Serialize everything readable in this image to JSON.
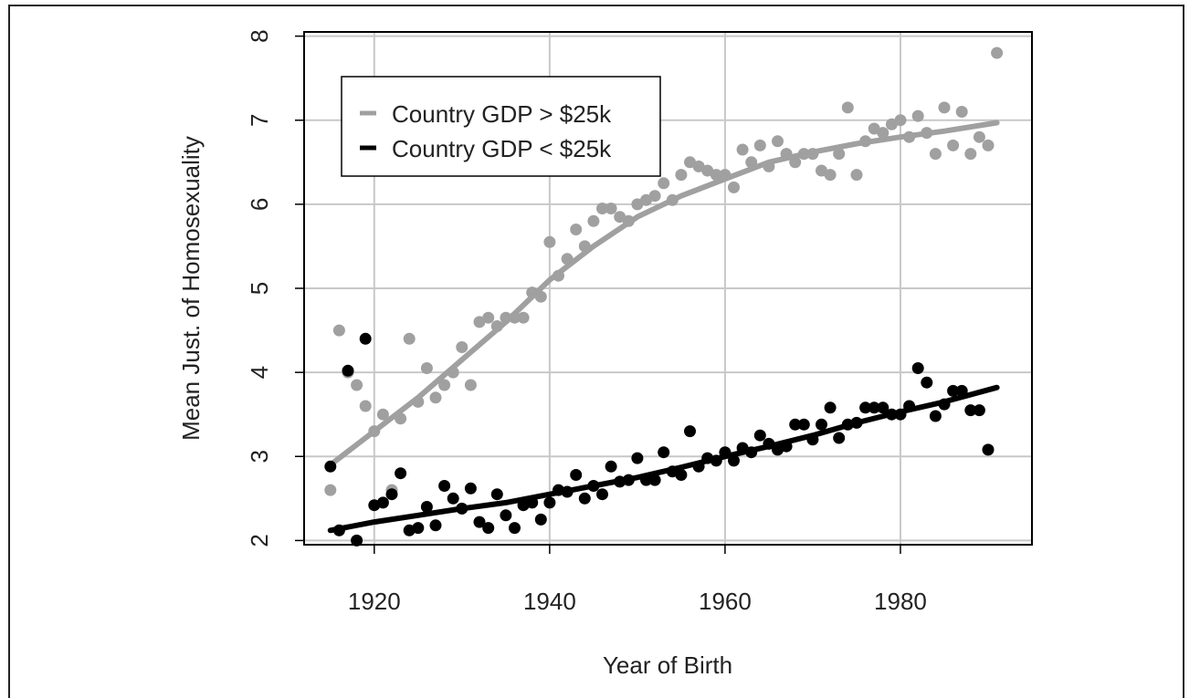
{
  "chart_data": {
    "type": "scatter",
    "title": "",
    "xlabel": "Year of Birth",
    "ylabel": "Mean Just. of Homosexuality",
    "xlim": [
      1912,
      1995
    ],
    "ylim": [
      1.95,
      8.05
    ],
    "x_ticks": [
      1920,
      1940,
      1960,
      1980
    ],
    "y_ticks": [
      2,
      3,
      4,
      5,
      6,
      7,
      8
    ],
    "grid": true,
    "legend_position": "top-left",
    "series": [
      {
        "name": "Country GDP > $25k",
        "color": "#a0a0a0",
        "trend": [
          [
            1915,
            2.9
          ],
          [
            1920,
            3.3
          ],
          [
            1925,
            3.7
          ],
          [
            1930,
            4.15
          ],
          [
            1935,
            4.6
          ],
          [
            1940,
            5.1
          ],
          [
            1945,
            5.5
          ],
          [
            1950,
            5.85
          ],
          [
            1955,
            6.1
          ],
          [
            1960,
            6.3
          ],
          [
            1965,
            6.5
          ],
          [
            1970,
            6.62
          ],
          [
            1975,
            6.72
          ],
          [
            1980,
            6.8
          ],
          [
            1985,
            6.87
          ],
          [
            1991,
            6.97
          ]
        ],
        "points": [
          [
            1915,
            2.6
          ],
          [
            1916,
            4.5
          ],
          [
            1917,
            4.0
          ],
          [
            1918,
            3.85
          ],
          [
            1919,
            3.6
          ],
          [
            1920,
            3.3
          ],
          [
            1921,
            3.5
          ],
          [
            1922,
            2.6
          ],
          [
            1923,
            3.45
          ],
          [
            1924,
            4.4
          ],
          [
            1925,
            3.65
          ],
          [
            1926,
            4.05
          ],
          [
            1927,
            3.7
          ],
          [
            1928,
            3.85
          ],
          [
            1929,
            4.0
          ],
          [
            1930,
            4.3
          ],
          [
            1931,
            3.85
          ],
          [
            1932,
            4.6
          ],
          [
            1933,
            4.65
          ],
          [
            1934,
            4.55
          ],
          [
            1935,
            4.65
          ],
          [
            1936,
            4.65
          ],
          [
            1937,
            4.65
          ],
          [
            1938,
            4.95
          ],
          [
            1939,
            4.9
          ],
          [
            1940,
            5.55
          ],
          [
            1941,
            5.15
          ],
          [
            1942,
            5.35
          ],
          [
            1943,
            5.7
          ],
          [
            1944,
            5.5
          ],
          [
            1945,
            5.8
          ],
          [
            1946,
            5.95
          ],
          [
            1947,
            5.95
          ],
          [
            1948,
            5.85
          ],
          [
            1949,
            5.8
          ],
          [
            1950,
            6.0
          ],
          [
            1951,
            6.05
          ],
          [
            1952,
            6.1
          ],
          [
            1953,
            6.25
          ],
          [
            1954,
            6.05
          ],
          [
            1955,
            6.35
          ],
          [
            1956,
            6.5
          ],
          [
            1957,
            6.45
          ],
          [
            1958,
            6.4
          ],
          [
            1959,
            6.35
          ],
          [
            1960,
            6.35
          ],
          [
            1961,
            6.2
          ],
          [
            1962,
            6.65
          ],
          [
            1963,
            6.5
          ],
          [
            1964,
            6.7
          ],
          [
            1965,
            6.45
          ],
          [
            1966,
            6.75
          ],
          [
            1967,
            6.6
          ],
          [
            1968,
            6.5
          ],
          [
            1969,
            6.6
          ],
          [
            1970,
            6.6
          ],
          [
            1971,
            6.4
          ],
          [
            1972,
            6.35
          ],
          [
            1973,
            6.6
          ],
          [
            1974,
            7.15
          ],
          [
            1975,
            6.35
          ],
          [
            1976,
            6.75
          ],
          [
            1977,
            6.9
          ],
          [
            1978,
            6.85
          ],
          [
            1979,
            6.95
          ],
          [
            1980,
            7.0
          ],
          [
            1981,
            6.8
          ],
          [
            1982,
            7.05
          ],
          [
            1983,
            6.85
          ],
          [
            1984,
            6.6
          ],
          [
            1985,
            7.15
          ],
          [
            1986,
            6.7
          ],
          [
            1987,
            7.1
          ],
          [
            1988,
            6.6
          ],
          [
            1989,
            6.8
          ],
          [
            1990,
            6.7
          ],
          [
            1991,
            7.8
          ]
        ]
      },
      {
        "name": "Country GDP < $25k",
        "color": "#000000",
        "trend": [
          [
            1915,
            2.12
          ],
          [
            1920,
            2.22
          ],
          [
            1925,
            2.3
          ],
          [
            1930,
            2.38
          ],
          [
            1935,
            2.45
          ],
          [
            1940,
            2.55
          ],
          [
            1945,
            2.65
          ],
          [
            1950,
            2.75
          ],
          [
            1955,
            2.87
          ],
          [
            1960,
            3.0
          ],
          [
            1965,
            3.12
          ],
          [
            1970,
            3.25
          ],
          [
            1975,
            3.4
          ],
          [
            1980,
            3.53
          ],
          [
            1985,
            3.65
          ],
          [
            1991,
            3.82
          ]
        ],
        "points": [
          [
            1915,
            2.88
          ],
          [
            1916,
            2.12
          ],
          [
            1917,
            4.02
          ],
          [
            1918,
            2.0
          ],
          [
            1919,
            4.4
          ],
          [
            1920,
            2.42
          ],
          [
            1921,
            2.45
          ],
          [
            1922,
            2.55
          ],
          [
            1923,
            2.8
          ],
          [
            1924,
            2.12
          ],
          [
            1925,
            2.15
          ],
          [
            1926,
            2.4
          ],
          [
            1927,
            2.18
          ],
          [
            1928,
            2.65
          ],
          [
            1929,
            2.5
          ],
          [
            1930,
            2.38
          ],
          [
            1931,
            2.62
          ],
          [
            1932,
            2.22
          ],
          [
            1933,
            2.15
          ],
          [
            1934,
            2.55
          ],
          [
            1935,
            2.3
          ],
          [
            1936,
            2.15
          ],
          [
            1937,
            2.42
          ],
          [
            1938,
            2.45
          ],
          [
            1939,
            2.25
          ],
          [
            1940,
            2.45
          ],
          [
            1941,
            2.6
          ],
          [
            1942,
            2.58
          ],
          [
            1943,
            2.78
          ],
          [
            1944,
            2.5
          ],
          [
            1945,
            2.65
          ],
          [
            1946,
            2.55
          ],
          [
            1947,
            2.88
          ],
          [
            1948,
            2.7
          ],
          [
            1949,
            2.72
          ],
          [
            1950,
            2.98
          ],
          [
            1951,
            2.72
          ],
          [
            1952,
            2.72
          ],
          [
            1953,
            3.05
          ],
          [
            1954,
            2.82
          ],
          [
            1955,
            2.78
          ],
          [
            1956,
            3.3
          ],
          [
            1957,
            2.88
          ],
          [
            1958,
            2.98
          ],
          [
            1959,
            2.95
          ],
          [
            1960,
            3.05
          ],
          [
            1961,
            2.95
          ],
          [
            1962,
            3.1
          ],
          [
            1963,
            3.05
          ],
          [
            1964,
            3.25
          ],
          [
            1965,
            3.15
          ],
          [
            1966,
            3.08
          ],
          [
            1967,
            3.12
          ],
          [
            1968,
            3.38
          ],
          [
            1969,
            3.38
          ],
          [
            1970,
            3.2
          ],
          [
            1971,
            3.38
          ],
          [
            1972,
            3.58
          ],
          [
            1973,
            3.22
          ],
          [
            1974,
            3.38
          ],
          [
            1975,
            3.4
          ],
          [
            1976,
            3.58
          ],
          [
            1977,
            3.58
          ],
          [
            1978,
            3.58
          ],
          [
            1979,
            3.5
          ],
          [
            1980,
            3.5
          ],
          [
            1981,
            3.6
          ],
          [
            1982,
            4.05
          ],
          [
            1983,
            3.88
          ],
          [
            1984,
            3.48
          ],
          [
            1985,
            3.62
          ],
          [
            1986,
            3.78
          ],
          [
            1987,
            3.78
          ],
          [
            1988,
            3.55
          ],
          [
            1989,
            3.55
          ],
          [
            1990,
            3.08
          ]
        ]
      }
    ]
  }
}
